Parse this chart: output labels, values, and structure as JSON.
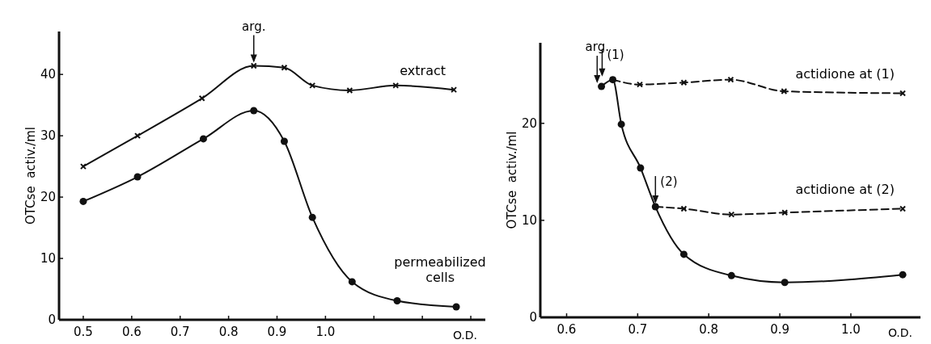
{
  "chart_data": [
    {
      "type": "line",
      "ylabel": "OTCse  activ./ml",
      "xlabel": "O.D.",
      "xlim": [
        0.45,
        1.33
      ],
      "ylim": [
        0,
        47
      ],
      "xticks": [
        0.5,
        0.6,
        0.7,
        0.8,
        0.9,
        {
          "value": 1,
          "label": "1.0"
        },
        {
          "value": 1.1,
          "label": null
        },
        {
          "value": 1.2,
          "label": null
        },
        {
          "value": 1.3,
          "label": null
        }
      ],
      "yticks": [
        0,
        10,
        20,
        30,
        40
      ],
      "grid": false,
      "line_style": "solid",
      "annotations": [
        {
          "text": "arg.",
          "x": 0.852,
          "y": 41.4
        }
      ],
      "series": [
        {
          "name": "extract",
          "color": "#111111",
          "marker": "cross",
          "x": [
            0.5,
            0.612,
            0.745,
            0.852,
            0.915,
            0.973,
            1.05,
            1.145,
            1.265
          ],
          "values": [
            25,
            30,
            36.1,
            41.4,
            41.1,
            38.2,
            37.4,
            38.2,
            37.5
          ]
        },
        {
          "name": "permeabilized cells",
          "color": "#111111",
          "marker": "circle",
          "x": [
            0.5,
            0.612,
            0.748,
            0.852,
            0.915,
            0.973,
            1.055,
            1.148,
            1.27
          ],
          "values": [
            19.3,
            23.3,
            29.5,
            34.1,
            29.1,
            16.7,
            6.2,
            3.1,
            2.1
          ]
        }
      ]
    },
    {
      "type": "line",
      "ylabel": "OTCse  activ./ml",
      "xlabel": "O.D.",
      "xlim": [
        0.563,
        1.098
      ],
      "ylim": [
        0,
        28.3
      ],
      "xticks": [
        0.6,
        0.7,
        0.8,
        0.9,
        {
          "value": 1,
          "label": "1.0"
        }
      ],
      "yticks": [
        0,
        10,
        20
      ],
      "grid": false,
      "annotations": [
        {
          "text": "arg.",
          "x": 0.643,
          "y": 23.8
        },
        {
          "text": "(1)",
          "x": 0.65,
          "y": 24.5
        },
        {
          "text": "(2)",
          "x": 0.725,
          "y": 11.4
        }
      ],
      "series": [
        {
          "color": "#111111",
          "marker": "circle",
          "line_style": "solid",
          "x": [
            0.649,
            0.665,
            0.677,
            0.704,
            0.725,
            0.765,
            0.832,
            0.907,
            1.073
          ],
          "values": [
            23.8,
            24.5,
            19.9,
            15.4,
            11.4,
            6.5,
            4.3,
            3.6,
            4.4
          ]
        },
        {
          "name": "actidione at (1)",
          "color": "#111111",
          "marker": "cross",
          "line_style": "dashed",
          "x": [
            0.665,
            0.703,
            0.765,
            0.831,
            0.906,
            1.073
          ],
          "values": [
            24.5,
            24.0,
            24.2,
            24.5,
            23.3,
            23.1
          ]
        },
        {
          "name": "actidione at (2)",
          "color": "#111111",
          "marker": "cross",
          "line_style": "dashed",
          "x": [
            0.725,
            0.765,
            0.832,
            0.907,
            1.073
          ],
          "values": [
            11.4,
            11.2,
            10.6,
            10.8,
            11.2
          ]
        }
      ]
    }
  ]
}
